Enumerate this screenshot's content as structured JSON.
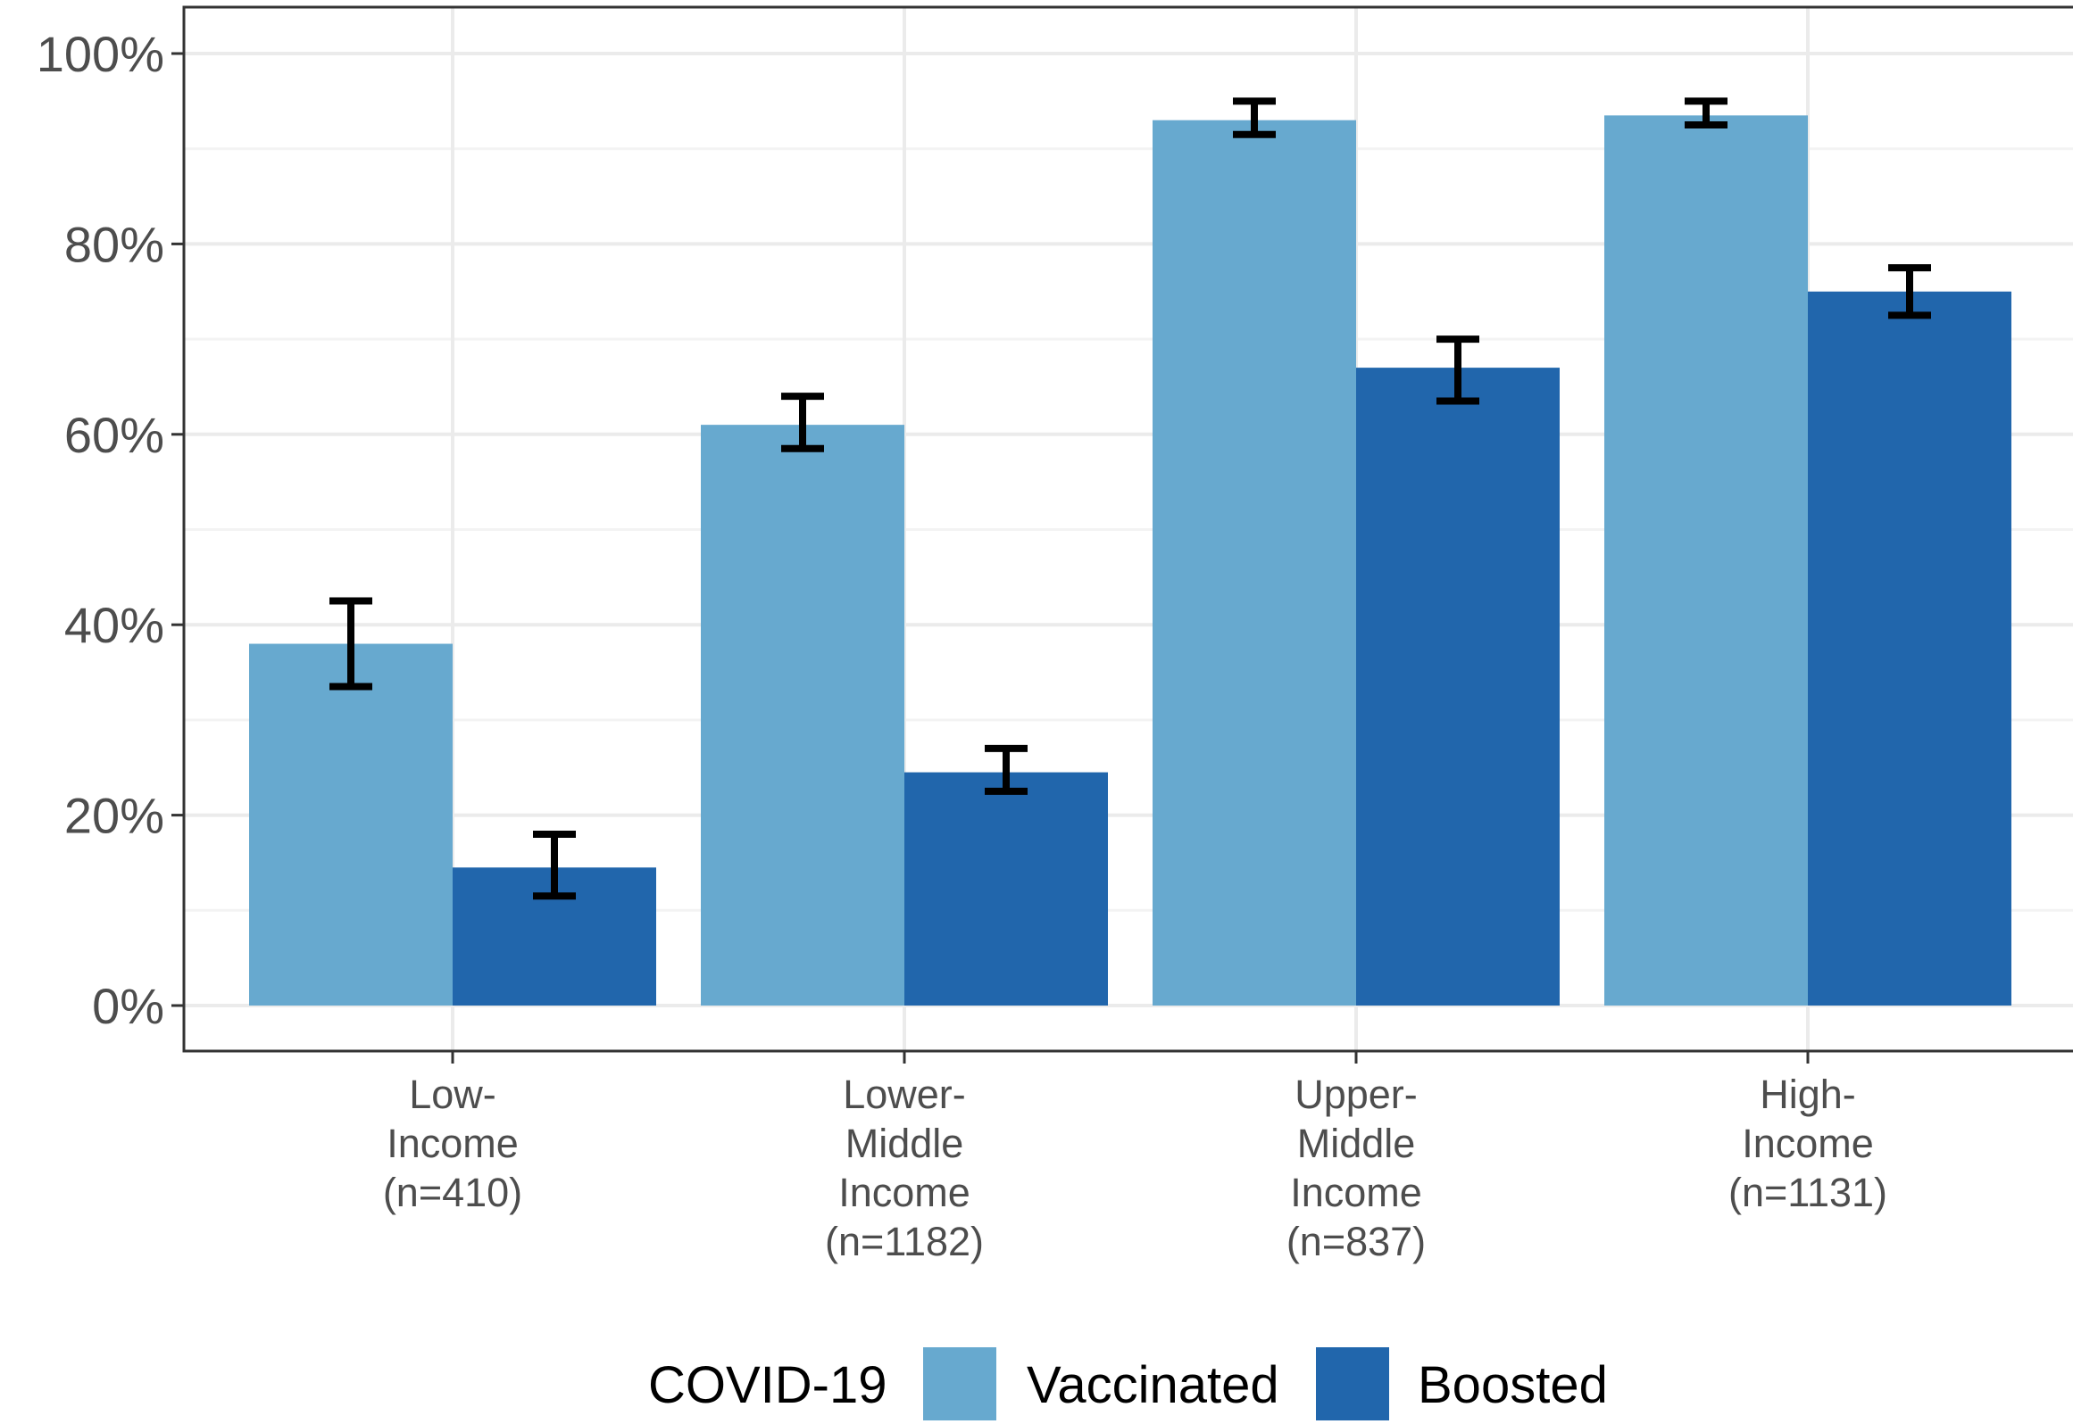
{
  "chart_data": {
    "type": "bar",
    "title": "",
    "xlabel": "",
    "ylabel": "",
    "ylim": [
      0,
      100
    ],
    "y_tick_values": [
      0,
      20,
      40,
      60,
      80,
      100
    ],
    "y_tick_labels": [
      "0%",
      "20%",
      "40%",
      "60%",
      "80%",
      "100%"
    ],
    "grid": true,
    "categories": [
      [
        "Low-",
        "Income",
        "(n=410)"
      ],
      [
        "Lower-",
        "Middle",
        "Income",
        "(n=1182)"
      ],
      [
        "Upper-",
        "Middle",
        "Income",
        "(n=837)"
      ],
      [
        "High-",
        "Income",
        "(n=1131)"
      ]
    ],
    "series": [
      {
        "name": "Vaccinated",
        "color": "#67a9cf",
        "values": [
          38,
          61,
          93,
          93.5
        ],
        "err_low": [
          33.5,
          58.5,
          91.5,
          92.5
        ],
        "err_high": [
          42.5,
          64,
          95,
          95
        ]
      },
      {
        "name": "Boosted",
        "color": "#2166ac",
        "values": [
          14.5,
          24.5,
          67,
          75
        ],
        "err_low": [
          11.5,
          22.5,
          63.5,
          72.5
        ],
        "err_high": [
          18,
          27,
          70,
          77.5
        ]
      }
    ],
    "legend": {
      "title": "COVID-19",
      "position": "bottom"
    }
  }
}
